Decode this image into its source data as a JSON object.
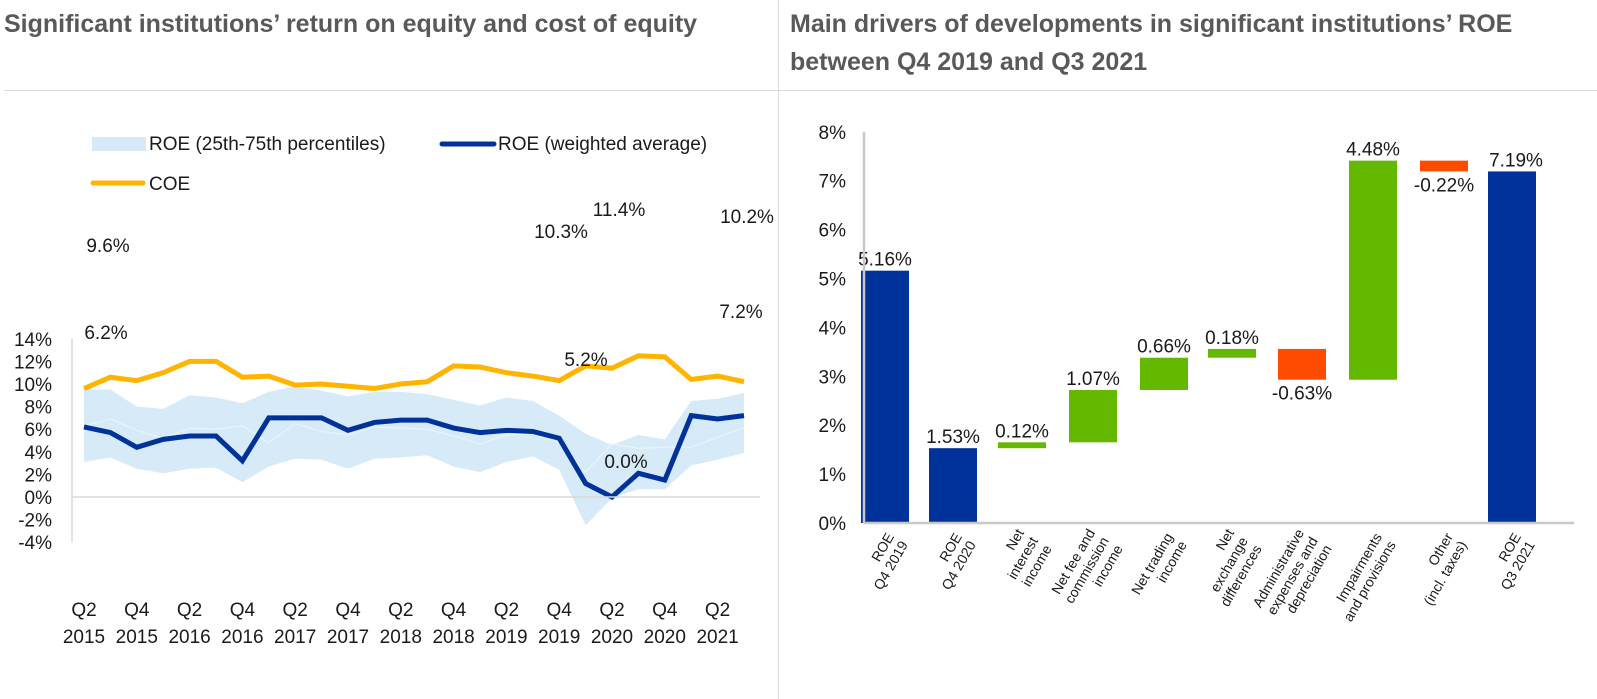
{
  "panels": {
    "left_title": "Significant institutions’ return on equity and cost of equity",
    "right_title": "Main drivers of developments in significant institutions’ ROE between Q4 2019 and Q3 2021"
  },
  "colors": {
    "roe_band": "#d6ebf7",
    "roe_line": "#003299",
    "coe_line": "#ffb400",
    "bar_total": "#003299",
    "bar_positive": "#65b800",
    "bar_negative": "#ff4b00",
    "axis": "#d9d9d9",
    "title": "#595959"
  },
  "chart_data": [
    {
      "type": "line",
      "title": "Significant institutions’ return on equity and cost of equity",
      "xlabel": "",
      "ylabel": "",
      "ylim": [
        -4,
        14
      ],
      "yticks": [
        -4,
        -2,
        0,
        2,
        4,
        6,
        8,
        10,
        12,
        14
      ],
      "ytick_labels": [
        "-4%",
        "-2%",
        "0%",
        "2%",
        "4%",
        "6%",
        "8%",
        "10%",
        "12%",
        "14%"
      ],
      "x": [
        "Q2 2015",
        "Q3 2015",
        "Q4 2015",
        "Q1 2016",
        "Q2 2016",
        "Q3 2016",
        "Q4 2016",
        "Q1 2017",
        "Q2 2017",
        "Q3 2017",
        "Q4 2017",
        "Q1 2018",
        "Q2 2018",
        "Q3 2018",
        "Q4 2018",
        "Q1 2019",
        "Q2 2019",
        "Q3 2019",
        "Q4 2019",
        "Q1 2020",
        "Q2 2020",
        "Q3 2020",
        "Q4 2020",
        "Q1 2021",
        "Q2 2021",
        "Q3 2021"
      ],
      "xtick_labels": [
        {
          "q": "Q2",
          "y": "2015"
        },
        {
          "q": "Q4",
          "y": "2015"
        },
        {
          "q": "Q2",
          "y": "2016"
        },
        {
          "q": "Q4",
          "y": "2016"
        },
        {
          "q": "Q2",
          "y": "2017"
        },
        {
          "q": "Q4",
          "y": "2017"
        },
        {
          "q": "Q2",
          "y": "2018"
        },
        {
          "q": "Q4",
          "y": "2018"
        },
        {
          "q": "Q2",
          "y": "2019"
        },
        {
          "q": "Q4",
          "y": "2019"
        },
        {
          "q": "Q2",
          "y": "2020"
        },
        {
          "q": "Q4",
          "y": "2020"
        },
        {
          "q": "Q2",
          "y": "2021"
        }
      ],
      "legend": {
        "placement": "top",
        "entries": [
          "ROE (25th-75th percentiles)",
          "ROE (weighted average)",
          "COE"
        ]
      },
      "series": [
        {
          "name": "ROE (25th-75th percentiles)",
          "kind": "band",
          "upper": [
            9.5,
            9.5,
            8.0,
            7.8,
            9.0,
            8.8,
            8.3,
            9.3,
            9.8,
            9.4,
            8.9,
            9.3,
            9.3,
            9.1,
            8.6,
            8.1,
            8.8,
            8.5,
            7.2,
            5.6,
            4.6,
            5.5,
            5.1,
            8.5,
            8.7,
            9.2
          ],
          "lower": [
            3.1,
            3.5,
            2.5,
            2.1,
            2.5,
            2.6,
            1.3,
            2.7,
            3.4,
            3.3,
            2.5,
            3.4,
            3.5,
            3.7,
            2.7,
            2.2,
            3.1,
            3.6,
            2.4,
            -2.5,
            -0.1,
            0.7,
            0.7,
            2.8,
            3.3,
            3.9
          ],
          "median": [
            6.3,
            6.9,
            5.9,
            5.2,
            6.1,
            6.0,
            6.3,
            4.8,
            6.5,
            5.8,
            5.5,
            6.2,
            6.1,
            6.0,
            5.4,
            4.7,
            5.5,
            5.6,
            4.8,
            2.2,
            4.7,
            4.3,
            4.4,
            4.4,
            5.3,
            6.1
          ]
        },
        {
          "name": "ROE (weighted average)",
          "kind": "line",
          "values": [
            6.2,
            5.7,
            4.4,
            5.1,
            5.4,
            5.4,
            3.2,
            7.0,
            7.0,
            7.0,
            5.9,
            6.6,
            6.8,
            6.8,
            6.1,
            5.7,
            5.9,
            5.8,
            5.2,
            1.2,
            0.0,
            2.1,
            1.5,
            7.2,
            6.9,
            7.2
          ],
          "annotations": [
            {
              "index": 0,
              "label": "6.2%"
            },
            {
              "index": 18,
              "label": "5.2%"
            },
            {
              "index": 20,
              "label": "0.0%"
            },
            {
              "index": 25,
              "label": "7.2%"
            }
          ]
        },
        {
          "name": "COE",
          "kind": "line",
          "values": [
            9.6,
            10.6,
            10.3,
            11.0,
            12.0,
            12.0,
            10.6,
            10.7,
            9.9,
            10.0,
            9.8,
            9.6,
            10.0,
            10.2,
            11.6,
            11.5,
            11.0,
            10.7,
            10.3,
            11.6,
            11.4,
            12.5,
            12.4,
            10.4,
            10.7,
            10.2
          ],
          "annotations": [
            {
              "index": 0,
              "label": "9.6%"
            },
            {
              "index": 18,
              "label": "10.3%"
            },
            {
              "index": 20,
              "label": "11.4%"
            },
            {
              "index": 25,
              "label": "10.2%"
            }
          ]
        }
      ]
    },
    {
      "type": "bar",
      "subtype": "waterfall",
      "title": "Main drivers of developments in significant institutions’ ROE between Q4 2019 and Q3 2021",
      "xlabel": "",
      "ylabel": "",
      "ylim": [
        0,
        8
      ],
      "yticks": [
        0,
        1,
        2,
        3,
        4,
        5,
        6,
        7,
        8
      ],
      "ytick_labels": [
        "0%",
        "1%",
        "2%",
        "3%",
        "4%",
        "5%",
        "6%",
        "7%",
        "8%"
      ],
      "categories": [
        [
          "ROE",
          "Q4 2019"
        ],
        [
          "ROE",
          "Q4 2020"
        ],
        [
          "Net",
          "interest",
          "income"
        ],
        [
          "Net fee and",
          "commission",
          "income"
        ],
        [
          "Net trading",
          "income"
        ],
        [
          "Net",
          "exchange",
          "differences"
        ],
        [
          "Administrative",
          "expenses and",
          "depreciation"
        ],
        [
          "Impairments",
          "and provisions"
        ],
        [
          "Other",
          "(incl. taxes)"
        ],
        [
          "ROE",
          "Q3 2021"
        ]
      ],
      "bars": [
        {
          "kind": "total",
          "base": 0,
          "value": 5.16,
          "label": "5.16%"
        },
        {
          "kind": "total",
          "base": 0,
          "value": 1.53,
          "label": "1.53%"
        },
        {
          "kind": "delta",
          "base": 1.53,
          "value": 0.12,
          "label": "0.12%"
        },
        {
          "kind": "delta",
          "base": 1.65,
          "value": 1.07,
          "label": "1.07%"
        },
        {
          "kind": "delta",
          "base": 2.72,
          "value": 0.66,
          "label": "0.66%"
        },
        {
          "kind": "delta",
          "base": 3.38,
          "value": 0.18,
          "label": "0.18%"
        },
        {
          "kind": "delta",
          "base": 3.56,
          "value": -0.63,
          "label": "-0.63%"
        },
        {
          "kind": "delta",
          "base": 2.93,
          "value": 4.48,
          "label": "4.48%"
        },
        {
          "kind": "delta",
          "base": 7.41,
          "value": -0.22,
          "label": "-0.22%"
        },
        {
          "kind": "total",
          "base": 0,
          "value": 7.19,
          "label": "7.19%"
        }
      ]
    }
  ]
}
